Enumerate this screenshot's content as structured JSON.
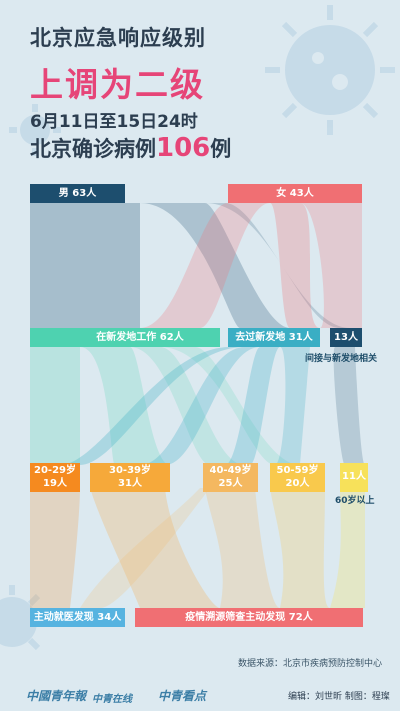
{
  "header": {
    "line1": "北京应急响应级别",
    "line2": "上调为二级",
    "line3": "6月11日至15日24时",
    "line4_prefix": "北京确诊病例",
    "line4_number": "106",
    "line4_suffix": "例"
  },
  "nodes": {
    "male": "男 63人",
    "female": "女 43人",
    "work_local": "在新发地工作  62人",
    "visited": "去过新发地  31人",
    "indirect": "13人",
    "indirect_label": "间接与新发地相关",
    "age_20_29_a": "20-29岁",
    "age_20_29_b": "19人",
    "age_30_39_a": "30-39岁",
    "age_30_39_b": "31人",
    "age_40_49_a": "40-49岁",
    "age_40_49_b": "25人",
    "age_50_59_a": "50-59岁",
    "age_50_59_b": "20人",
    "age_60": "11人",
    "age_60_label": "60岁以上",
    "found_clinic": "主动就医发现  34人",
    "found_trace": "疫情溯源筛查主动发现  72人"
  },
  "colors": {
    "male": "#1d4e6e",
    "female": "#f06f73",
    "work": "#4ed2b0",
    "visited": "#3aaec4",
    "indirect": "#1d4e6e",
    "a20": "#f58a1f",
    "a30": "#f6a93a",
    "a40": "#f4b860",
    "a50": "#f9c94c",
    "a60": "#f7e15a",
    "clinic": "#56b3e0",
    "trace": "#f06f73"
  },
  "source": "数据来源：北京市疾病预防控制中心",
  "footer": {
    "logo1": "中國青年報",
    "logo2": "中青在线",
    "logo3": "中青看点",
    "credit": "编辑：刘世昕   制图：程璨"
  }
}
